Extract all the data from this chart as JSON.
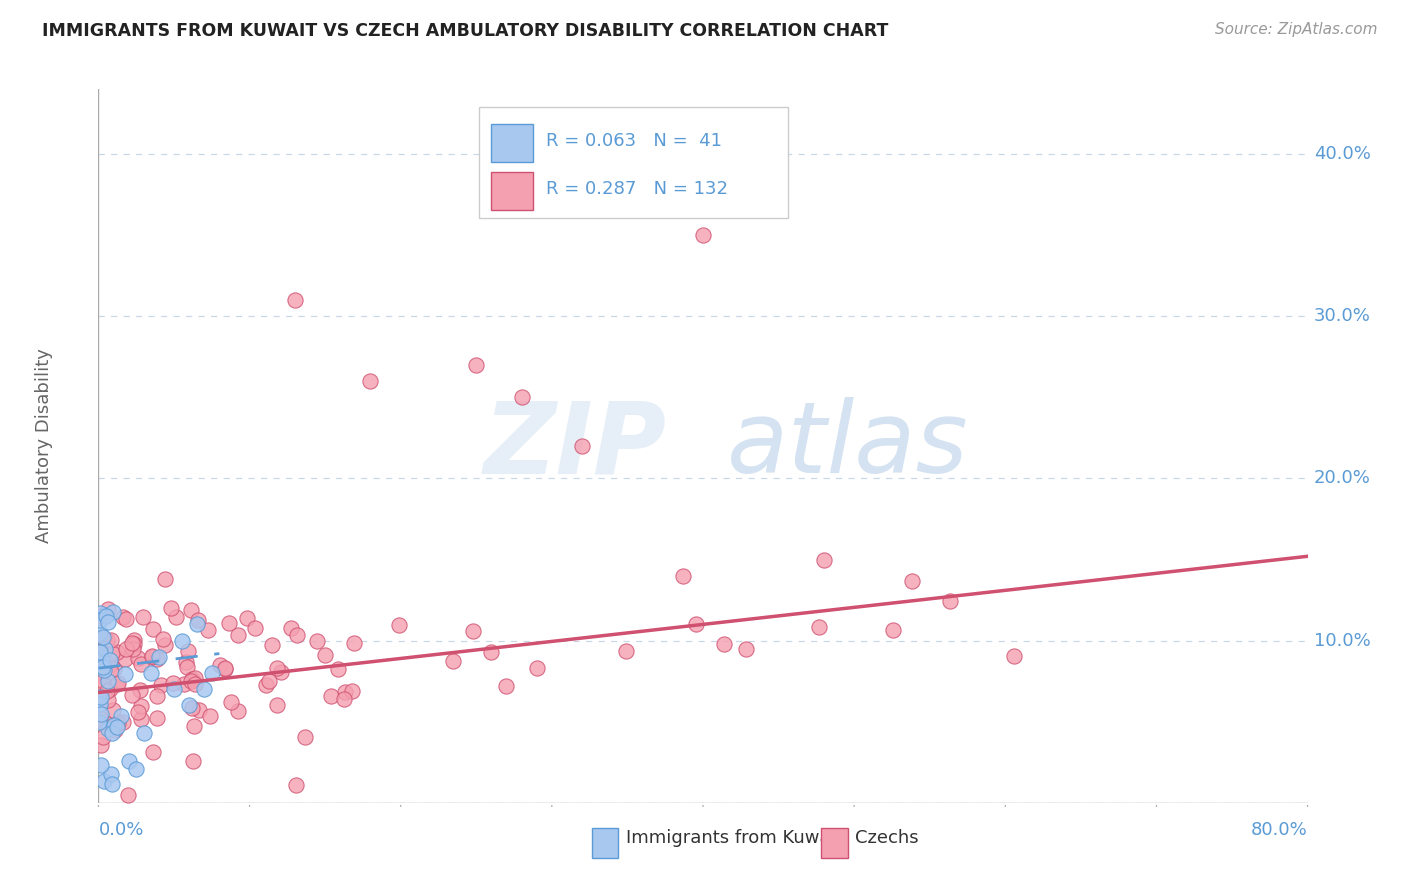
{
  "title": "IMMIGRANTS FROM KUWAIT VS CZECH AMBULATORY DISABILITY CORRELATION CHART",
  "source": "Source: ZipAtlas.com",
  "ylabel": "Ambulatory Disability",
  "xlim": [
    0.0,
    0.8
  ],
  "ylim": [
    -0.02,
    0.44
  ],
  "plot_ylim": [
    0.0,
    0.44
  ],
  "yticks": [
    0.0,
    0.1,
    0.2,
    0.3,
    0.4
  ],
  "blue_R": 0.063,
  "blue_N": 41,
  "pink_R": 0.287,
  "pink_N": 132,
  "axis_color": "#5b9bd5",
  "grid_color": "#c8d8e8",
  "legend_label_blue": "Immigrants from Kuwait",
  "legend_label_pink": "Czechs",
  "blue_scatter_color": "#a8c8f0",
  "pink_scatter_color": "#f4a0b0",
  "blue_line_color": "#5b9bd5",
  "pink_line_color": "#d05070",
  "background_color": "#ffffff",
  "watermark_zip": "ZIP",
  "watermark_atlas": "atlas",
  "blue_seed": 42,
  "pink_seed": 99
}
